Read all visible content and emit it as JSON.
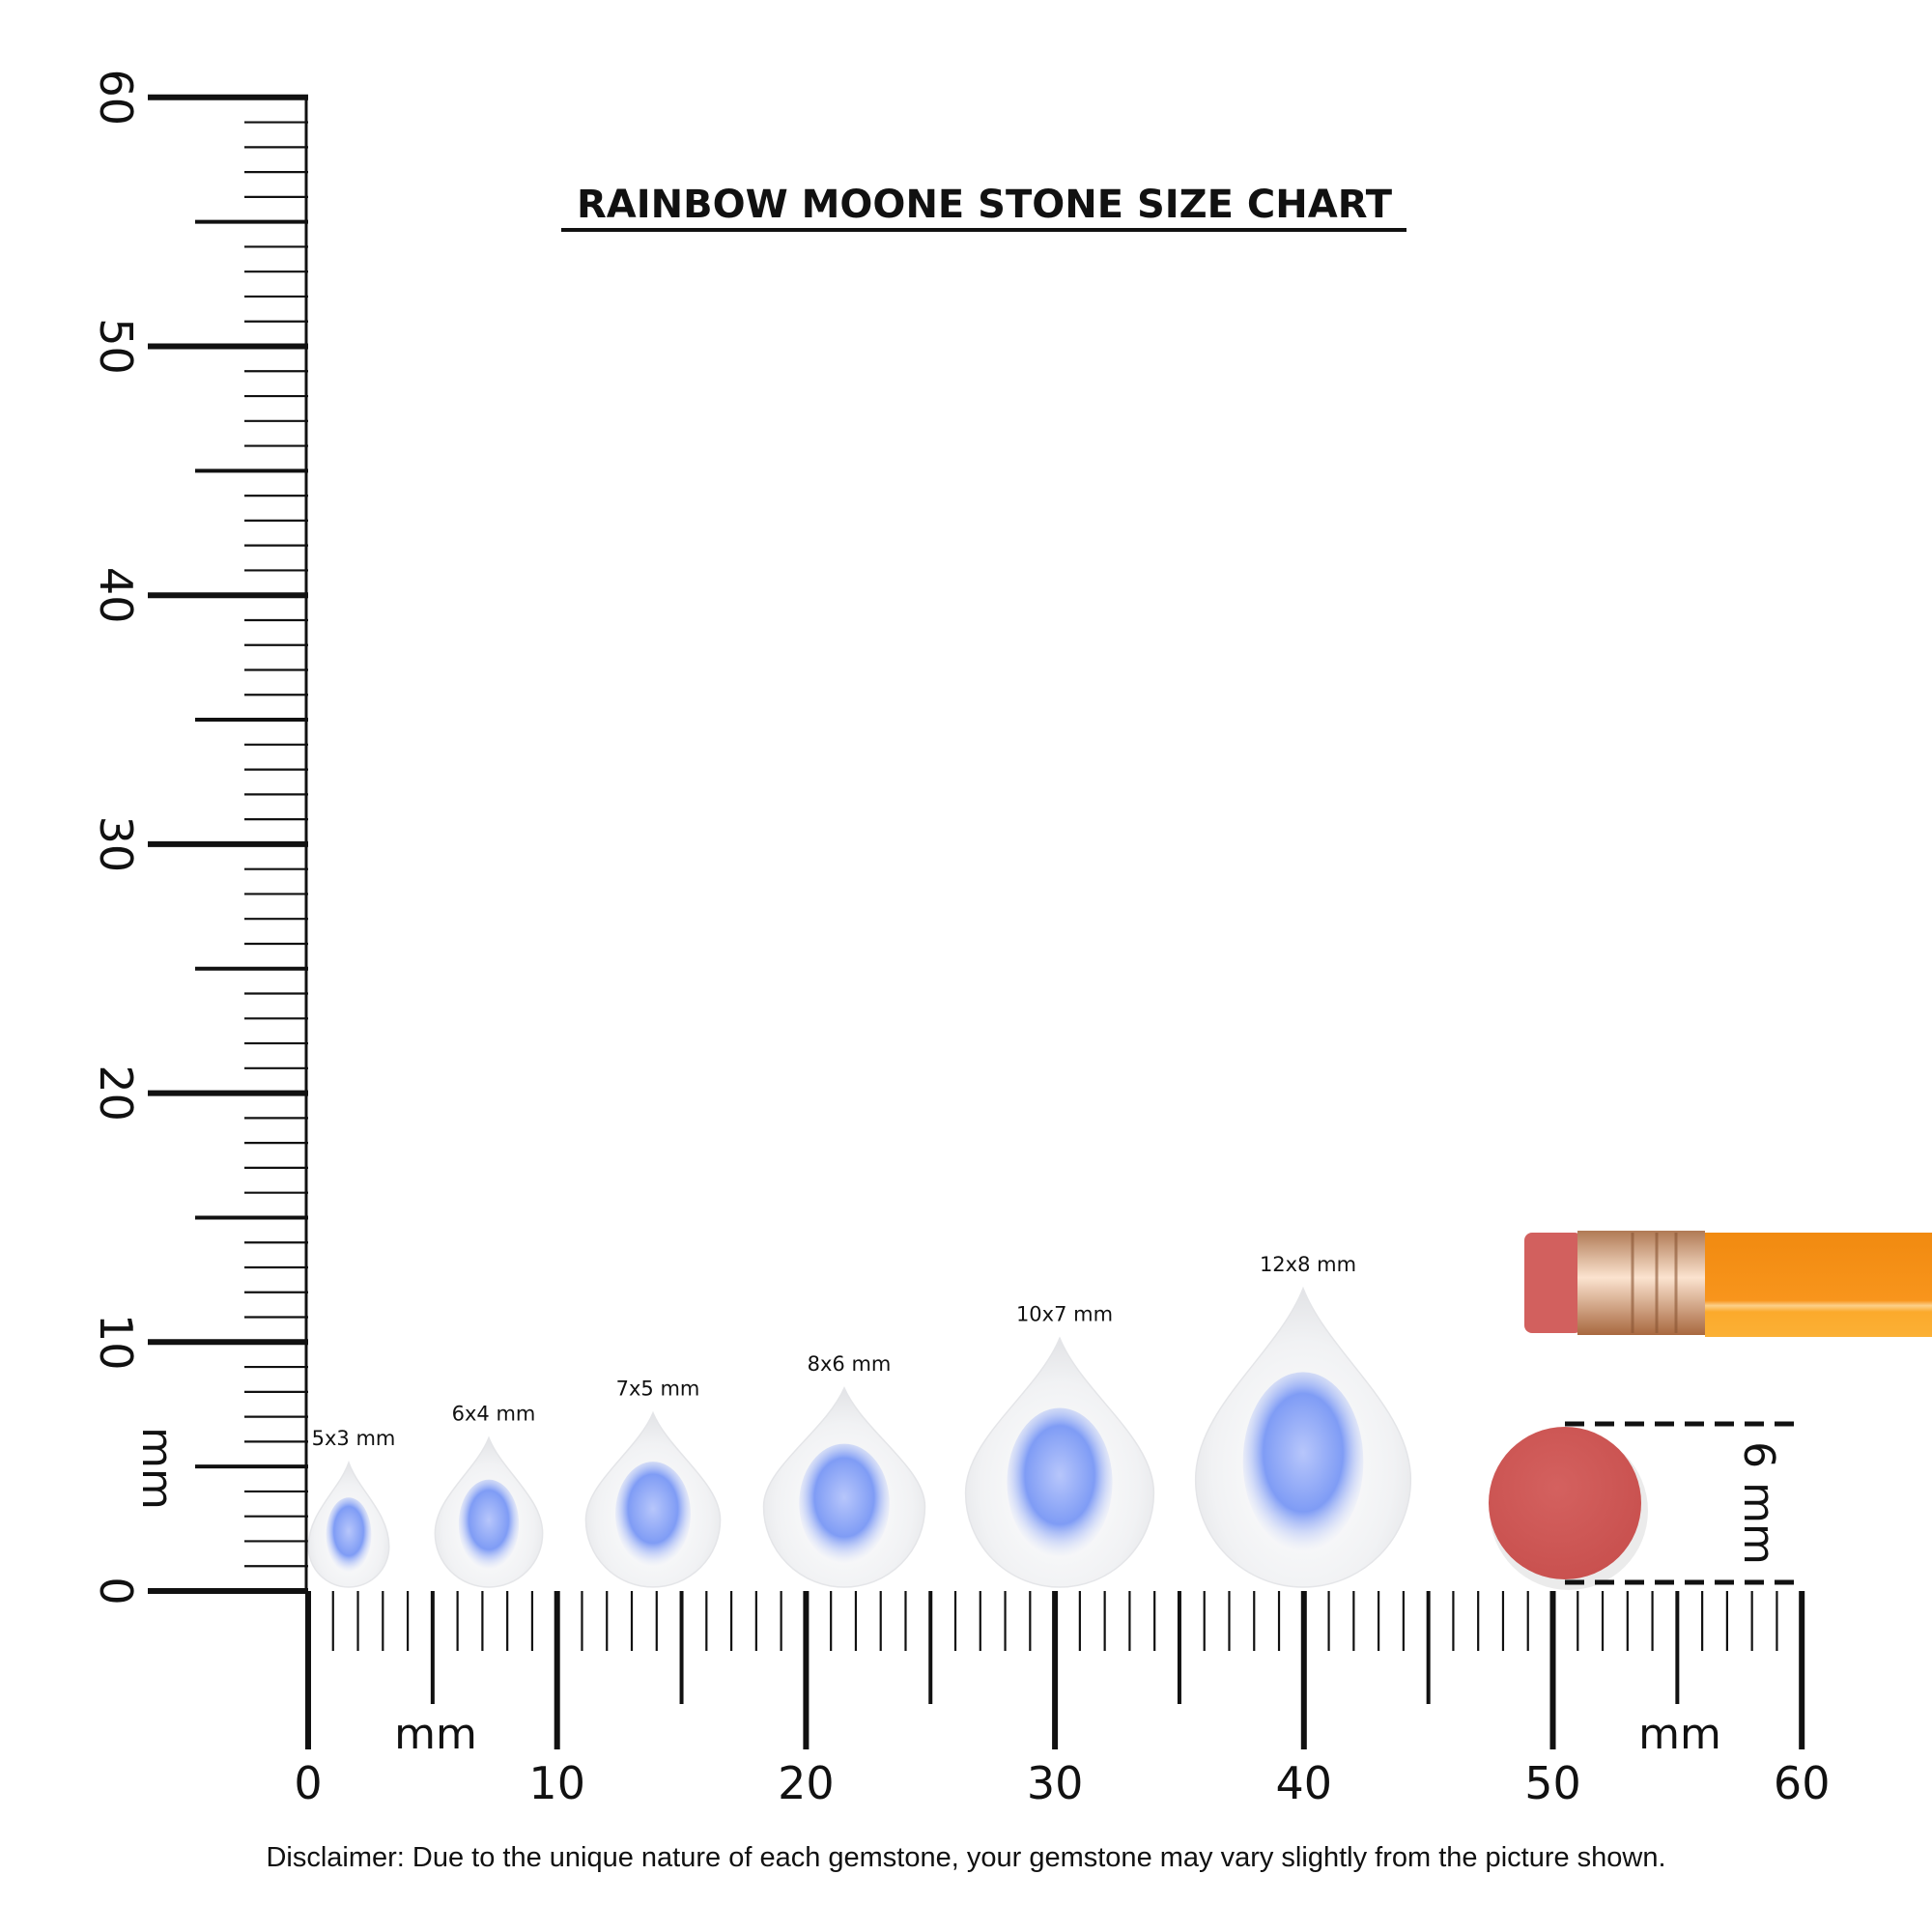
{
  "title": "RAINBOW MOONE STONE SIZE CHART",
  "ruler": {
    "unit_label": "mm",
    "range_mm": [
      0,
      60
    ],
    "major_labels": [
      "0",
      "10",
      "20",
      "30",
      "40",
      "50",
      "60"
    ]
  },
  "stones": [
    {
      "label": "5x3 mm",
      "length_mm": 5,
      "width_mm": 3
    },
    {
      "label": "6x4 mm",
      "length_mm": 6,
      "width_mm": 4
    },
    {
      "label": "7x5 mm",
      "length_mm": 7,
      "width_mm": 5
    },
    {
      "label": "8x6 mm",
      "length_mm": 8,
      "width_mm": 6
    },
    {
      "label": "10x7 mm",
      "length_mm": 10,
      "width_mm": 7
    },
    {
      "label": "12x8 mm",
      "length_mm": 12,
      "width_mm": 8
    }
  ],
  "reference": {
    "object": "pencil eraser",
    "size_label": "6 mm",
    "diameter_mm": 6
  },
  "colors": {
    "eraser": "#d05a5a",
    "pencil_body": "#f7941d",
    "ferrule": "#d9a47c",
    "stone_blue": "#7f9cf5"
  },
  "disclaimer": "Disclaimer: Due to the unique nature of each gemstone, your gemstone may vary slightly from the picture shown."
}
